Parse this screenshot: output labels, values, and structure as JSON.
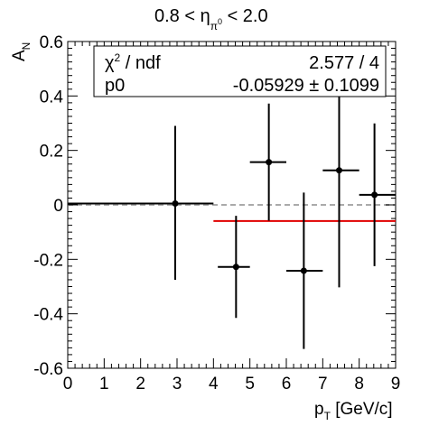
{
  "title": {
    "pre": "0.8 < η",
    "sub": "π",
    "sup": "0",
    "post": " < 2.0"
  },
  "stats": {
    "rows": [
      {
        "label_main": "χ",
        "label_sup": "2",
        "label_rest": " / ndf",
        "value": "2.577 / 4"
      },
      {
        "label_main": "p0",
        "label_sup": "",
        "label_rest": "",
        "value": "-0.05929 ± 0.1099"
      }
    ]
  },
  "chart_data": {
    "type": "scatter",
    "title": "0.8 < η_π0 < 2.0",
    "xlabel": "p_T [GeV/c]",
    "ylabel": "A_N",
    "xlim": [
      0,
      9
    ],
    "ylim": [
      -0.6,
      0.6
    ],
    "x_major_ticks": [
      0,
      1,
      2,
      3,
      4,
      5,
      6,
      7,
      8,
      9
    ],
    "x_tick_labels": [
      "0",
      "1",
      "2",
      "3",
      "4",
      "5",
      "6",
      "7",
      "8",
      "9"
    ],
    "y_major_ticks": [
      -0.6,
      -0.4,
      -0.2,
      0,
      0.2,
      0.4,
      0.6
    ],
    "y_tick_labels": [
      "-0.6",
      "-0.4",
      "-0.2",
      "0",
      "0.2",
      "0.4",
      "0.6"
    ],
    "grid": false,
    "series": [
      {
        "points": [
          {
            "x": 2.95,
            "y": 0.005,
            "xerr": [
              2.95,
              1.05
            ],
            "yerr": [
              0.28,
              0.285
            ]
          },
          {
            "x": 4.62,
            "y": -0.228,
            "xerr": [
              0.5,
              0.38
            ],
            "yerr": [
              0.187,
              0.188
            ]
          },
          {
            "x": 5.52,
            "y": 0.157,
            "xerr": [
              0.52,
              0.48
            ],
            "yerr": [
              0.215,
              0.215
            ]
          },
          {
            "x": 6.48,
            "y": -0.242,
            "xerr": [
              0.48,
              0.52
            ],
            "yerr": [
              0.287,
              0.287
            ]
          },
          {
            "x": 7.45,
            "y": 0.127,
            "xerr": [
              0.45,
              0.55
            ],
            "yerr": [
              0.43,
              0.43
            ]
          },
          {
            "x": 8.42,
            "y": 0.037,
            "xerr": [
              0.42,
              0.58
            ],
            "yerr": [
              0.262,
              0.262
            ]
          }
        ],
        "color": "#000000"
      }
    ],
    "fit": {
      "y": -0.05929,
      "x_range": [
        4,
        9
      ],
      "color": "#e00000"
    },
    "reference_line": {
      "y": 0,
      "style": "dashed",
      "color": "#aaaaaa"
    }
  }
}
